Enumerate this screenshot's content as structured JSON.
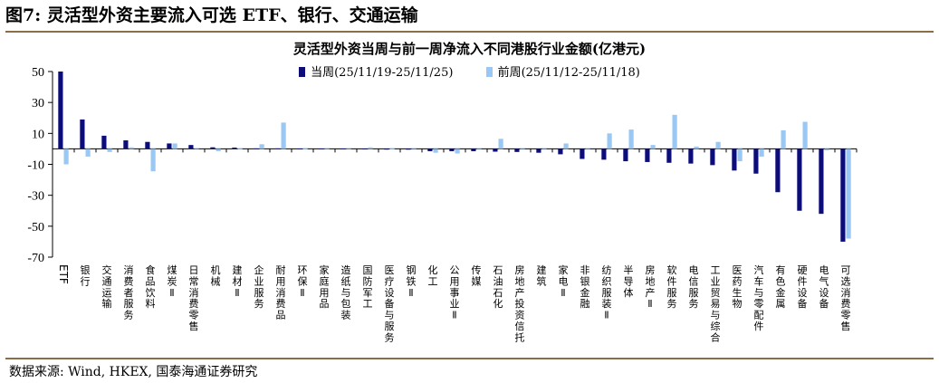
{
  "figure_title": "图7: 灵活型外资主要流入可选 ETF、银行、交通运输",
  "source": "数据来源: Wind, HKEX, 国泰海通证券研究",
  "colors": {
    "current": "#0d0d7a",
    "previous": "#9ac8f5",
    "rule": "#8a6d49",
    "axis": "#000000"
  },
  "chart_data": {
    "type": "bar",
    "title": "灵活型外资当周与前一周净流入不同港股行业金额(亿港元)",
    "xlabel": "",
    "ylabel": "",
    "ylim": [
      -70,
      50
    ],
    "yticks": [
      50,
      30,
      10,
      -10,
      -30,
      -50,
      -70
    ],
    "grid": false,
    "legend": "top-center",
    "categories": [
      "ETF",
      "银行",
      "交通运输",
      "消费者服务",
      "食品饮料",
      "煤炭Ⅱ",
      "日常消费零售",
      "机械",
      "建材Ⅱ",
      "企业服务",
      "耐用消费品",
      "环保Ⅱ",
      "家庭用品",
      "造纸与包装",
      "国防军工",
      "医疗设备与服务",
      "钢铁Ⅱ",
      "化工",
      "公用事业Ⅱ",
      "传媒",
      "石油石化",
      "房地产投资信托",
      "建筑",
      "家电Ⅱ",
      "非银金融",
      "纺织服装Ⅱ",
      "半导体",
      "房地产Ⅱ",
      "软件服务",
      "电信服务",
      "工业贸易与综合",
      "医药生物",
      "汽车与零配件",
      "有色金属",
      "硬件设备",
      "电气设备",
      "可选消费零售"
    ],
    "series": [
      {
        "name": "当周(25/11/19-25/11/25)",
        "values": [
          50,
          19,
          8.5,
          5.5,
          4.5,
          3.5,
          2.5,
          1.0,
          0.8,
          0.3,
          0.3,
          0.2,
          0.2,
          0.2,
          0.1,
          -0.2,
          -0.5,
          -1.5,
          -1.5,
          -1.5,
          -1.8,
          -2.0,
          -2.5,
          -3.5,
          -6.5,
          -7.0,
          -8.0,
          -8.5,
          -9.0,
          -9.5,
          -10.5,
          -14,
          -16,
          -28,
          -40,
          -42,
          -60
        ]
      },
      {
        "name": "前周(25/11/12-25/11/18)",
        "values": [
          -10,
          -5,
          -2,
          1,
          -14.5,
          3.5,
          0,
          -1.5,
          0.3,
          3,
          17,
          0.3,
          0.5,
          0.5,
          1.0,
          0.3,
          0,
          -2.5,
          -3,
          0,
          6.5,
          0,
          0,
          3.5,
          0,
          10,
          12.5,
          2.5,
          22,
          1.5,
          4.5,
          -8,
          -5,
          12,
          17.5,
          -1,
          -58
        ]
      }
    ]
  }
}
